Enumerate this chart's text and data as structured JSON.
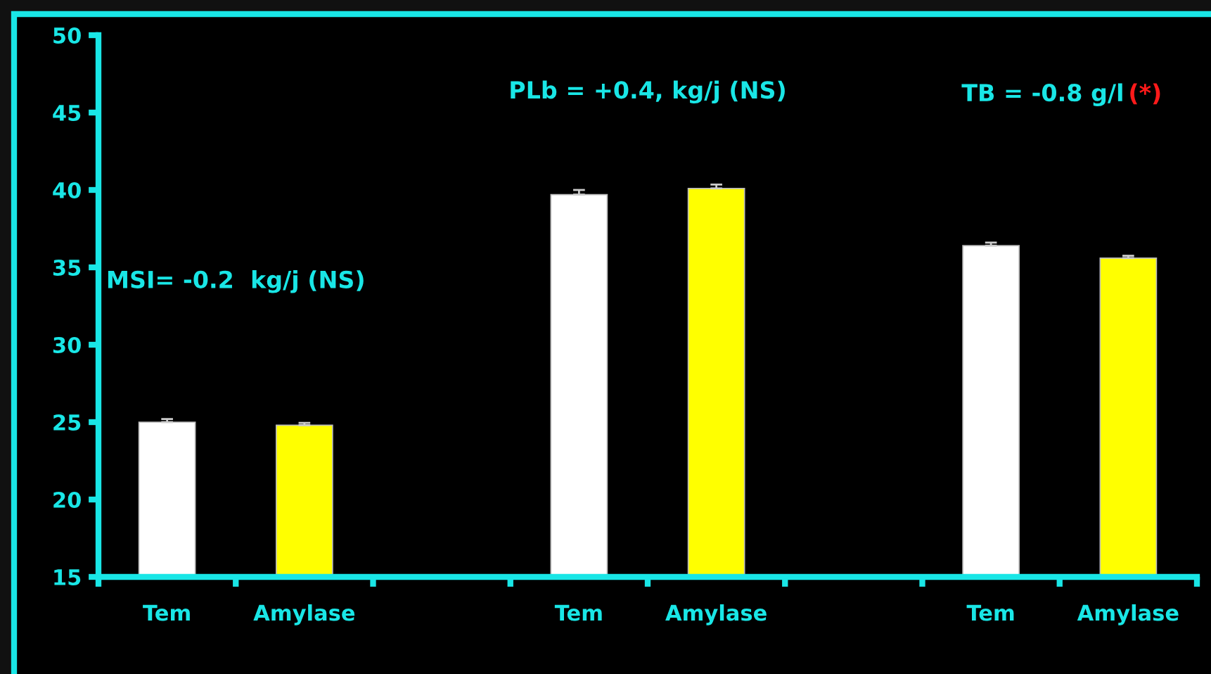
{
  "chart_data": {
    "type": "bar",
    "categories": [
      "Tem",
      "Amylase",
      null,
      "Tem",
      "Amylase",
      null,
      "Tem",
      "Amylase"
    ],
    "values": [
      25.0,
      24.8,
      null,
      39.7,
      40.1,
      null,
      36.4,
      35.6
    ],
    "colors": [
      "#ffffff",
      "#ffff00",
      null,
      "#ffffff",
      "#ffff00",
      null,
      "#ffffff",
      "#ffff00"
    ],
    "errors": [
      [
        25.0,
        25.2
      ],
      [
        24.8,
        24.95
      ],
      null,
      [
        39.7,
        40.0
      ],
      [
        40.1,
        40.35
      ],
      null,
      [
        36.4,
        36.6
      ],
      [
        35.6,
        35.75
      ]
    ],
    "ylim": [
      15,
      50
    ],
    "yticks": [
      15,
      20,
      25,
      30,
      35,
      40,
      45,
      50
    ],
    "annotations": [
      "MSI= -0.2  kg/j (NS)",
      "PLb = +0.4, kg/j (NS)",
      "TB = -0.8 g/l",
      "(*)"
    ],
    "grid": false
  }
}
